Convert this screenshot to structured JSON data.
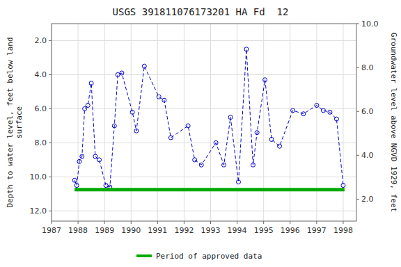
{
  "chart_data": {
    "type": "line",
    "title": "USGS 391811076173201 HA Fd  12",
    "ylabel": "Depth to water level, feet below land\nsurface",
    "y2label": "Groundwater level above NGVD 1929, feet",
    "xlim": [
      1987.0,
      1998.5
    ],
    "xticks": [
      1987,
      1988,
      1989,
      1990,
      1991,
      1992,
      1993,
      1994,
      1995,
      1996,
      1997,
      1998
    ],
    "ylim": [
      12.6,
      1.0
    ],
    "yticks": [
      {
        "value": 2.0,
        "label": "2.0"
      },
      {
        "value": 4.0,
        "label": "4.0"
      },
      {
        "value": 6.0,
        "label": "6.0"
      },
      {
        "value": 8.0,
        "label": "8.0"
      },
      {
        "value": 10.0,
        "label": "10.0"
      },
      {
        "value": 12.0,
        "label": "12.0"
      }
    ],
    "y2lim": [
      1.0,
      10.0
    ],
    "y2ticks": [
      {
        "value": 2.0,
        "label": "2.0"
      },
      {
        "value": 4.0,
        "label": "4.0"
      },
      {
        "value": 6.0,
        "label": "6.0"
      },
      {
        "value": 8.0,
        "label": "8.0"
      },
      {
        "value": 10.0,
        "label": "10.0"
      }
    ],
    "grid": true,
    "legend": "bottom",
    "series": [
      {
        "type": "line",
        "color": "#0000cc",
        "line_style": "dashed",
        "marker": "open-circle",
        "x": [
          1987.87,
          1987.95,
          1988.05,
          1988.15,
          1988.25,
          1988.37,
          1988.5,
          1988.65,
          1988.8,
          1989.05,
          1989.2,
          1989.37,
          1989.5,
          1989.65,
          1990.05,
          1990.2,
          1990.5,
          1991.05,
          1991.25,
          1991.5,
          1992.15,
          1992.4,
          1992.65,
          1993.2,
          1993.5,
          1993.75,
          1994.05,
          1994.35,
          1994.6,
          1994.75,
          1995.05,
          1995.3,
          1995.6,
          1996.1,
          1996.5,
          1997.0,
          1997.25,
          1997.5,
          1997.75,
          1998.0
        ],
        "values": [
          10.2,
          10.5,
          9.1,
          8.8,
          6.0,
          5.8,
          4.5,
          8.8,
          9.0,
          10.5,
          10.6,
          7.0,
          4.0,
          3.9,
          6.2,
          7.3,
          3.5,
          5.3,
          5.5,
          7.7,
          7.0,
          9.0,
          9.3,
          8.0,
          9.3,
          6.5,
          10.3,
          2.5,
          9.3,
          7.4,
          4.3,
          7.8,
          8.2,
          6.1,
          6.3,
          5.8,
          6.1,
          6.2,
          6.6,
          10.5
        ]
      },
      {
        "type": "line",
        "name": "Period of approved data",
        "color": "#00aa00",
        "line_style": "solid",
        "x": [
          1987.87,
          1998.05
        ],
        "values": [
          10.75,
          10.75
        ]
      }
    ]
  }
}
